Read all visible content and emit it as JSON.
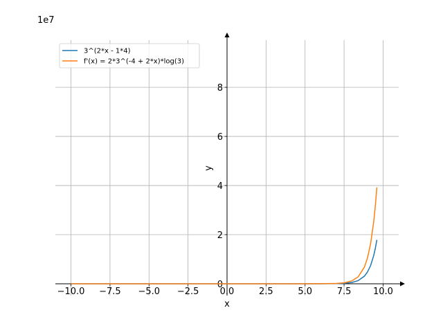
{
  "chart_data": {
    "type": "line",
    "offset_label": "1e7",
    "xlabel": "x",
    "ylabel": "y",
    "x": [
      -10,
      -8,
      -6,
      -4,
      -2,
      0,
      2,
      4,
      6,
      7,
      7.5,
      8,
      8.4,
      8.8,
      9.0,
      9.2,
      9.4,
      9.5,
      9.6
    ],
    "series": [
      {
        "name": "3^(2*x - 1*4)",
        "color": "#1f77b4",
        "values": [
          0,
          0,
          0,
          0,
          0,
          0,
          0,
          0,
          0.0007,
          0.0059,
          0.0177,
          0.0531,
          0.128,
          0.308,
          0.478,
          0.742,
          1.152,
          1.435,
          1.787
        ]
      },
      {
        "name": "f'(x) = 2*3^(-4 + 2*x)*log(3)",
        "color": "#ff7f0e",
        "values": [
          0,
          0,
          0,
          0,
          0,
          0,
          0,
          0,
          0.0015,
          0.013,
          0.0389,
          0.1167,
          0.281,
          0.677,
          1.051,
          1.631,
          2.531,
          3.153,
          3.927
        ]
      }
    ],
    "xlim": [
      -11,
      11
    ],
    "ylim": [
      -0.48,
      9.92
    ],
    "xticks": [
      {
        "value": -10,
        "label": "−10.0"
      },
      {
        "value": -7.5,
        "label": "−7.5"
      },
      {
        "value": -5,
        "label": "−5.0"
      },
      {
        "value": -2.5,
        "label": "−2.5"
      },
      {
        "value": 0,
        "label": "0.0"
      },
      2.5,
      {
        "value": 5,
        "label": "5.0"
      },
      7.5,
      {
        "value": 10,
        "label": "10.0"
      }
    ],
    "yticks": [
      0,
      2,
      4,
      6,
      8
    ],
    "grid": true,
    "legend": "upper left"
  }
}
